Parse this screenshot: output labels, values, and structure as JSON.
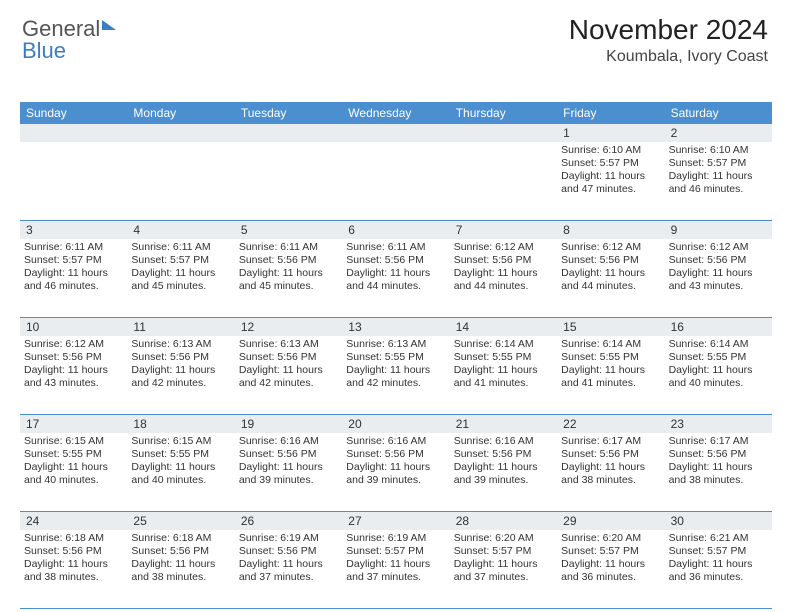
{
  "brand": {
    "name_part1": "General",
    "name_part2": "Blue"
  },
  "header": {
    "month_title": "November 2024",
    "location": "Koumbala, Ivory Coast"
  },
  "colors": {
    "header_bg": "#4b8fd0",
    "header_text": "#ffffff",
    "daynum_bg": "#e9edf0",
    "border": "#4b8fd0",
    "text": "#333333",
    "brand_blue": "#3a7fc4"
  },
  "daynames": [
    "Sunday",
    "Monday",
    "Tuesday",
    "Wednesday",
    "Thursday",
    "Friday",
    "Saturday"
  ],
  "weeks": [
    [
      null,
      null,
      null,
      null,
      null,
      {
        "n": "1",
        "sunrise": "Sunrise: 6:10 AM",
        "sunset": "Sunset: 5:57 PM",
        "daylight": "Daylight: 11 hours and 47 minutes."
      },
      {
        "n": "2",
        "sunrise": "Sunrise: 6:10 AM",
        "sunset": "Sunset: 5:57 PM",
        "daylight": "Daylight: 11 hours and 46 minutes."
      }
    ],
    [
      {
        "n": "3",
        "sunrise": "Sunrise: 6:11 AM",
        "sunset": "Sunset: 5:57 PM",
        "daylight": "Daylight: 11 hours and 46 minutes."
      },
      {
        "n": "4",
        "sunrise": "Sunrise: 6:11 AM",
        "sunset": "Sunset: 5:57 PM",
        "daylight": "Daylight: 11 hours and 45 minutes."
      },
      {
        "n": "5",
        "sunrise": "Sunrise: 6:11 AM",
        "sunset": "Sunset: 5:56 PM",
        "daylight": "Daylight: 11 hours and 45 minutes."
      },
      {
        "n": "6",
        "sunrise": "Sunrise: 6:11 AM",
        "sunset": "Sunset: 5:56 PM",
        "daylight": "Daylight: 11 hours and 44 minutes."
      },
      {
        "n": "7",
        "sunrise": "Sunrise: 6:12 AM",
        "sunset": "Sunset: 5:56 PM",
        "daylight": "Daylight: 11 hours and 44 minutes."
      },
      {
        "n": "8",
        "sunrise": "Sunrise: 6:12 AM",
        "sunset": "Sunset: 5:56 PM",
        "daylight": "Daylight: 11 hours and 44 minutes."
      },
      {
        "n": "9",
        "sunrise": "Sunrise: 6:12 AM",
        "sunset": "Sunset: 5:56 PM",
        "daylight": "Daylight: 11 hours and 43 minutes."
      }
    ],
    [
      {
        "n": "10",
        "sunrise": "Sunrise: 6:12 AM",
        "sunset": "Sunset: 5:56 PM",
        "daylight": "Daylight: 11 hours and 43 minutes."
      },
      {
        "n": "11",
        "sunrise": "Sunrise: 6:13 AM",
        "sunset": "Sunset: 5:56 PM",
        "daylight": "Daylight: 11 hours and 42 minutes."
      },
      {
        "n": "12",
        "sunrise": "Sunrise: 6:13 AM",
        "sunset": "Sunset: 5:56 PM",
        "daylight": "Daylight: 11 hours and 42 minutes."
      },
      {
        "n": "13",
        "sunrise": "Sunrise: 6:13 AM",
        "sunset": "Sunset: 5:55 PM",
        "daylight": "Daylight: 11 hours and 42 minutes."
      },
      {
        "n": "14",
        "sunrise": "Sunrise: 6:14 AM",
        "sunset": "Sunset: 5:55 PM",
        "daylight": "Daylight: 11 hours and 41 minutes."
      },
      {
        "n": "15",
        "sunrise": "Sunrise: 6:14 AM",
        "sunset": "Sunset: 5:55 PM",
        "daylight": "Daylight: 11 hours and 41 minutes."
      },
      {
        "n": "16",
        "sunrise": "Sunrise: 6:14 AM",
        "sunset": "Sunset: 5:55 PM",
        "daylight": "Daylight: 11 hours and 40 minutes."
      }
    ],
    [
      {
        "n": "17",
        "sunrise": "Sunrise: 6:15 AM",
        "sunset": "Sunset: 5:55 PM",
        "daylight": "Daylight: 11 hours and 40 minutes."
      },
      {
        "n": "18",
        "sunrise": "Sunrise: 6:15 AM",
        "sunset": "Sunset: 5:55 PM",
        "daylight": "Daylight: 11 hours and 40 minutes."
      },
      {
        "n": "19",
        "sunrise": "Sunrise: 6:16 AM",
        "sunset": "Sunset: 5:56 PM",
        "daylight": "Daylight: 11 hours and 39 minutes."
      },
      {
        "n": "20",
        "sunrise": "Sunrise: 6:16 AM",
        "sunset": "Sunset: 5:56 PM",
        "daylight": "Daylight: 11 hours and 39 minutes."
      },
      {
        "n": "21",
        "sunrise": "Sunrise: 6:16 AM",
        "sunset": "Sunset: 5:56 PM",
        "daylight": "Daylight: 11 hours and 39 minutes."
      },
      {
        "n": "22",
        "sunrise": "Sunrise: 6:17 AM",
        "sunset": "Sunset: 5:56 PM",
        "daylight": "Daylight: 11 hours and 38 minutes."
      },
      {
        "n": "23",
        "sunrise": "Sunrise: 6:17 AM",
        "sunset": "Sunset: 5:56 PM",
        "daylight": "Daylight: 11 hours and 38 minutes."
      }
    ],
    [
      {
        "n": "24",
        "sunrise": "Sunrise: 6:18 AM",
        "sunset": "Sunset: 5:56 PM",
        "daylight": "Daylight: 11 hours and 38 minutes."
      },
      {
        "n": "25",
        "sunrise": "Sunrise: 6:18 AM",
        "sunset": "Sunset: 5:56 PM",
        "daylight": "Daylight: 11 hours and 38 minutes."
      },
      {
        "n": "26",
        "sunrise": "Sunrise: 6:19 AM",
        "sunset": "Sunset: 5:56 PM",
        "daylight": "Daylight: 11 hours and 37 minutes."
      },
      {
        "n": "27",
        "sunrise": "Sunrise: 6:19 AM",
        "sunset": "Sunset: 5:57 PM",
        "daylight": "Daylight: 11 hours and 37 minutes."
      },
      {
        "n": "28",
        "sunrise": "Sunrise: 6:20 AM",
        "sunset": "Sunset: 5:57 PM",
        "daylight": "Daylight: 11 hours and 37 minutes."
      },
      {
        "n": "29",
        "sunrise": "Sunrise: 6:20 AM",
        "sunset": "Sunset: 5:57 PM",
        "daylight": "Daylight: 11 hours and 36 minutes."
      },
      {
        "n": "30",
        "sunrise": "Sunrise: 6:21 AM",
        "sunset": "Sunset: 5:57 PM",
        "daylight": "Daylight: 11 hours and 36 minutes."
      }
    ]
  ]
}
